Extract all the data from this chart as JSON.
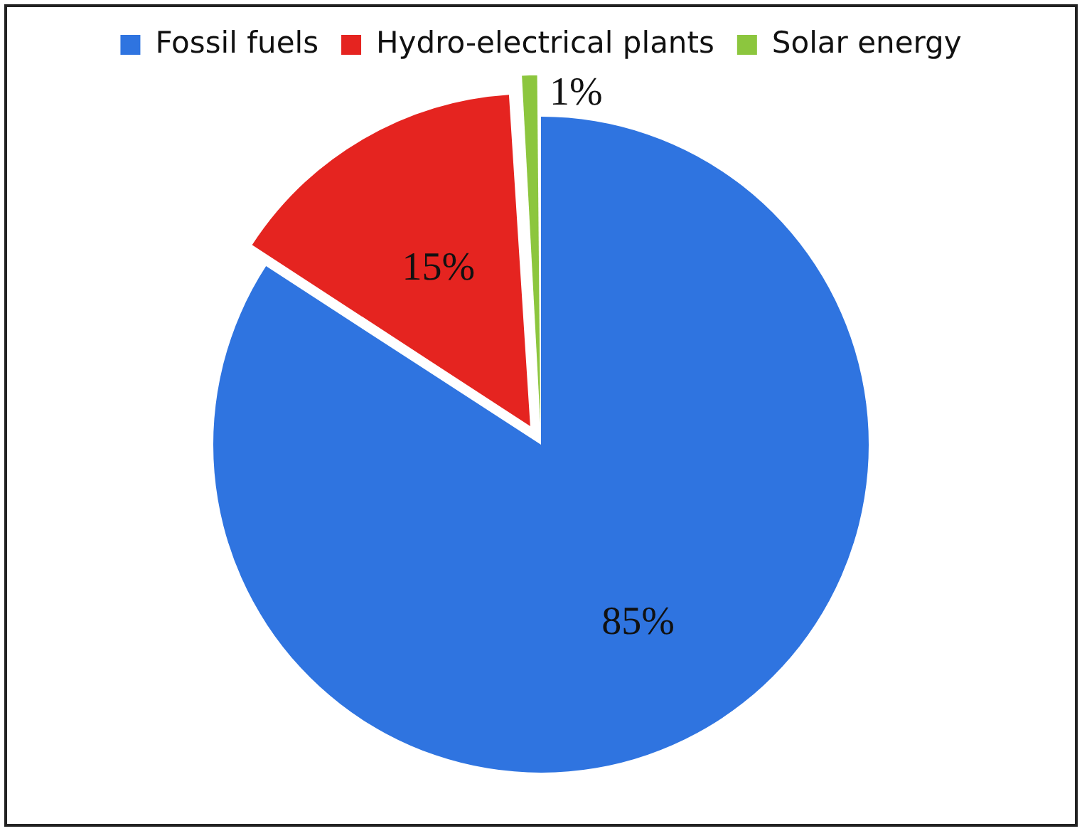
{
  "chart_data": {
    "type": "pie",
    "categories": [
      "Fossil fuels",
      "Hydro-electrical plants",
      "Solar energy"
    ],
    "values": [
      85,
      15,
      1
    ],
    "colors": [
      "#2f74e0",
      "#e52420",
      "#8cc63e"
    ],
    "value_labels": [
      "85%",
      "15%",
      "1%"
    ],
    "legend": "top"
  }
}
